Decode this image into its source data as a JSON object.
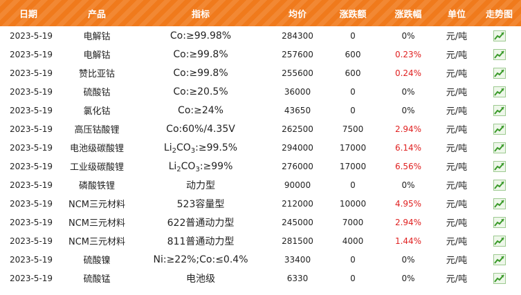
{
  "headers": [
    "日期",
    "产品",
    "指标",
    "均价",
    "涨跌额",
    "涨跌幅",
    "单位",
    "走势图"
  ],
  "colors": {
    "header_bg": "#f07a1c",
    "header_text": "#ffffff",
    "rise": "#e02020",
    "chart_icon": "#3a9a2a"
  },
  "icons": {
    "trend": "trend-chart-icon"
  },
  "rows": [
    {
      "date": "2023-5-19",
      "product": "电解钴",
      "index": {
        "plain": "Co:≥99.98%"
      },
      "price": "284300",
      "change": "0",
      "pct": "0%",
      "unit": "元/吨"
    },
    {
      "date": "2023-5-19",
      "product": "电解钴",
      "index": {
        "plain": "Co:≥99.8%"
      },
      "price": "257600",
      "change": "600",
      "pct": "0.23%",
      "unit": "元/吨"
    },
    {
      "date": "2023-5-19",
      "product": "赞比亚钴",
      "index": {
        "plain": "Co:≥99.8%"
      },
      "price": "255600",
      "change": "600",
      "pct": "0.24%",
      "unit": "元/吨"
    },
    {
      "date": "2023-5-19",
      "product": "硫酸钴",
      "index": {
        "plain": "Co:≥20.5%"
      },
      "price": "36000",
      "change": "0",
      "pct": "0%",
      "unit": "元/吨"
    },
    {
      "date": "2023-5-19",
      "product": "氯化钴",
      "index": {
        "plain": "Co:≥24%"
      },
      "price": "43650",
      "change": "0",
      "pct": "0%",
      "unit": "元/吨"
    },
    {
      "date": "2023-5-19",
      "product": "高压钴酸锂",
      "index": {
        "plain": "Co:60%/4.35V"
      },
      "price": "262500",
      "change": "7500",
      "pct": "2.94%",
      "unit": "元/吨"
    },
    {
      "date": "2023-5-19",
      "product": "电池级碳酸锂",
      "index": {
        "pre": "Li",
        "s1": "2",
        "mid": "CO",
        "s2": "3",
        "post": ":≥99.5%"
      },
      "price": "294000",
      "change": "17000",
      "pct": "6.14%",
      "unit": "元/吨"
    },
    {
      "date": "2023-5-19",
      "product": "工业级碳酸锂",
      "index": {
        "pre": "Li",
        "s1": "2",
        "mid": "CO",
        "s2": "3",
        "post": ":≥99%"
      },
      "price": "276000",
      "change": "17000",
      "pct": "6.56%",
      "unit": "元/吨"
    },
    {
      "date": "2023-5-19",
      "product": "磷酸铁锂",
      "index": {
        "plain": "动力型"
      },
      "price": "90000",
      "change": "0",
      "pct": "0%",
      "unit": "元/吨"
    },
    {
      "date": "2023-5-19",
      "product": "NCM三元材料",
      "index": {
        "plain": "523容量型"
      },
      "price": "212000",
      "change": "10000",
      "pct": "4.95%",
      "unit": "元/吨"
    },
    {
      "date": "2023-5-19",
      "product": "NCM三元材料",
      "index": {
        "plain": "622普通动力型"
      },
      "price": "245000",
      "change": "7000",
      "pct": "2.94%",
      "unit": "元/吨"
    },
    {
      "date": "2023-5-19",
      "product": "NCM三元材料",
      "index": {
        "plain": "811普通动力型"
      },
      "price": "281500",
      "change": "4000",
      "pct": "1.44%",
      "unit": "元/吨"
    },
    {
      "date": "2023-5-19",
      "product": "硫酸镍",
      "index": {
        "plain": "Ni:≥22%;Co:≤0.4%"
      },
      "price": "33400",
      "change": "0",
      "pct": "0%",
      "unit": "元/吨"
    },
    {
      "date": "2023-5-19",
      "product": "硫酸锰",
      "index": {
        "plain": "电池级"
      },
      "price": "6330",
      "change": "0",
      "pct": "0%",
      "unit": "元/吨"
    }
  ]
}
